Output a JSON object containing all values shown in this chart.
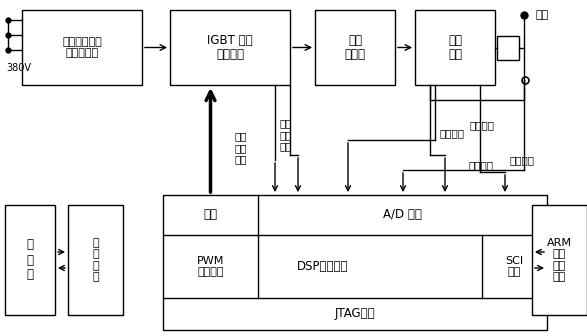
{
  "bg_color": "#ffffff",
  "font_family": "SimHei",
  "lw": 1.0,
  "lw_thick": 2.5,
  "label_380v": "380V",
  "label_load": "负载",
  "label_current_feedback": "电流反馈",
  "label_primary_current": "初级\n电流\n反馈",
  "label_voltage_feedback": "电压反馈",
  "label_optocoupler": "光耦",
  "label_ad": "A/D 模块",
  "label_pwm": "PWM\n驱动控制",
  "label_dsp": "DSP控制核心",
  "label_sci": "SCI\n模块",
  "label_jtag": "JTAG接口",
  "label_igbt": "IGBT 全桥\n逆变电路",
  "label_passive": "无源谐波抑制\n和整流滤波",
  "label_transformer": "中频\n变压器",
  "label_rectifier": "整流\n滤波",
  "label_wire_feeder": "送\n丝\n机",
  "label_wire_circuit": "送\n丝\n电\n路",
  "label_arm": "ARM\n全数\n字化\n面板"
}
